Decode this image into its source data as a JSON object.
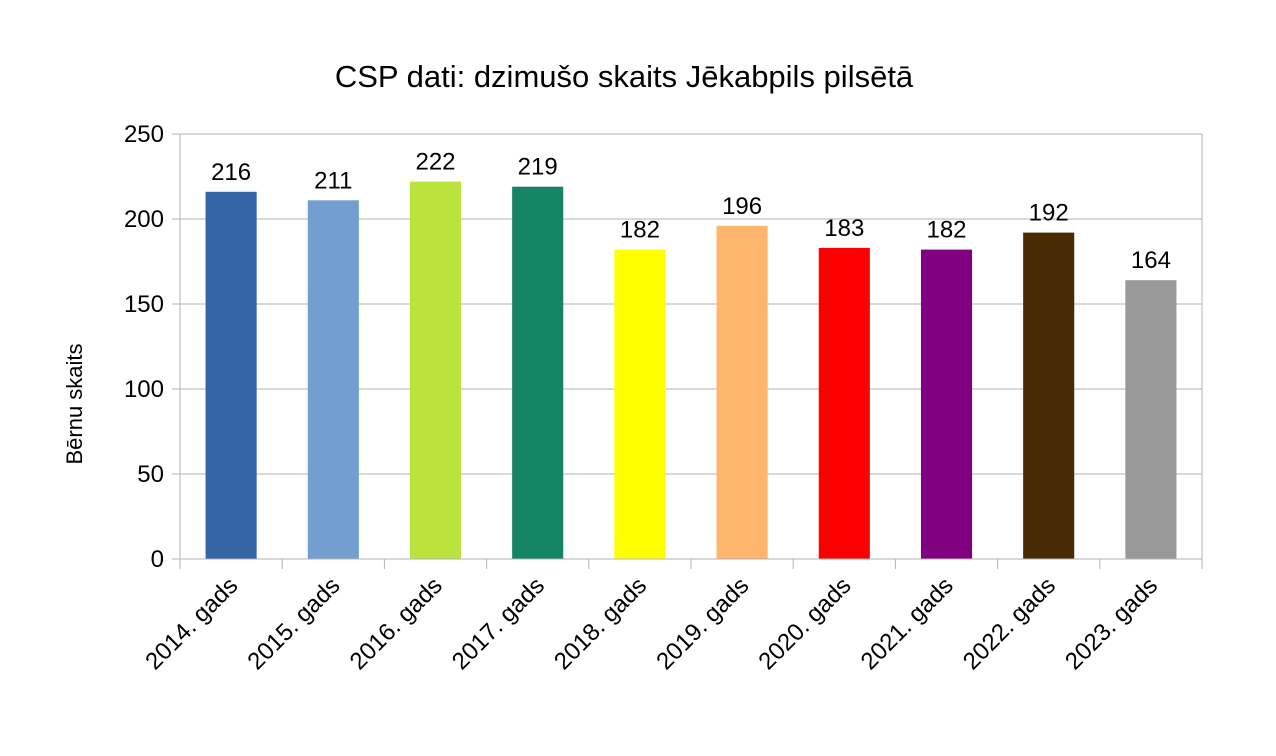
{
  "chart_data": {
    "type": "bar",
    "title": "CSP dati: dzimušo skaits Jēkabpils pilsētā",
    "xlabel": "",
    "ylabel": "Bērnu skaits",
    "ylim": [
      0,
      250
    ],
    "yticks": [
      0,
      50,
      100,
      150,
      200,
      250
    ],
    "grid": true,
    "legend": "none",
    "categories": [
      "2014. gads",
      "2015. gads",
      "2016. gads",
      "2017. gads",
      "2018. gads",
      "2019. gads",
      "2020. gads",
      "2021. gads",
      "2022. gads",
      "2023. gads"
    ],
    "values": [
      216,
      211,
      222,
      219,
      182,
      196,
      183,
      182,
      192,
      164
    ],
    "colors": [
      "#3465a4",
      "#729fcf",
      "#bbe33d",
      "#158466",
      "#ffff00",
      "#ffb66c",
      "#ff0000",
      "#800080",
      "#492b03",
      "#999999"
    ]
  }
}
